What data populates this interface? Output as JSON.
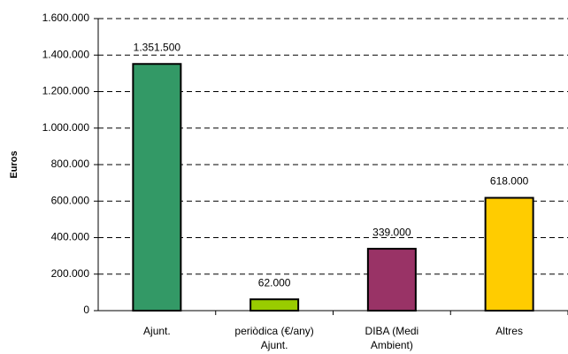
{
  "chart_data": {
    "type": "bar",
    "y_label": "Euros",
    "categories": [
      [
        "Ajunt."
      ],
      [
        "periòdica (€/any)",
        "Ajunt."
      ],
      [
        "DIBA (Medi",
        "Ambient)"
      ],
      [
        "Altres"
      ]
    ],
    "values": [
      1351500,
      62000,
      339000,
      618000
    ],
    "value_labels": [
      "1.351.500",
      "62.000",
      "339.000",
      "618.000"
    ],
    "colors": [
      "#339966",
      "#99cc00",
      "#993366",
      "#ffcc00"
    ],
    "ylim": [
      0,
      1600000
    ],
    "yticks": [
      0,
      {
        "value": 200000,
        "label": "200.000"
      },
      {
        "value": 400000,
        "label": "400.000"
      },
      {
        "value": 600000,
        "label": "600.000"
      },
      {
        "value": 800000,
        "label": "800.000"
      },
      {
        "value": 1000000,
        "label": "1.000.000"
      },
      {
        "value": 1200000,
        "label": "1.200.000"
      },
      {
        "value": 1400000,
        "label": "1.400.000"
      },
      {
        "value": 1600000,
        "label": "1.600.000"
      }
    ],
    "grid": true
  }
}
